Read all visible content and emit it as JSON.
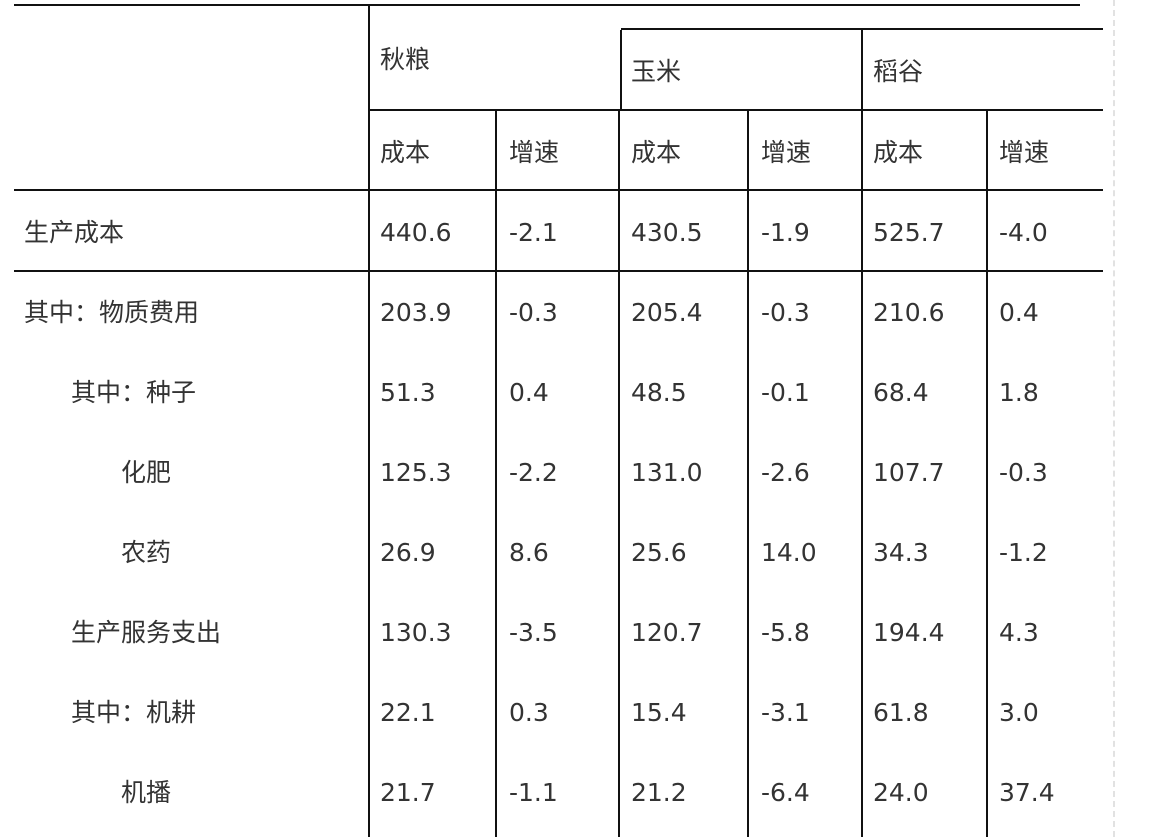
{
  "header": {
    "groups": [
      "秋粮",
      "玉米",
      "稻谷"
    ],
    "sub": [
      "成本",
      "增速",
      "成本",
      "增速",
      "成本",
      "增速"
    ]
  },
  "rows": [
    {
      "label": "生产成本",
      "indent": 0,
      "values": [
        "440.6",
        "-2.1",
        "430.5",
        "-1.9",
        "525.7",
        "-4.0"
      ]
    },
    {
      "label": "其中：物质费用",
      "indent": 0,
      "values": [
        "203.9",
        "-0.3",
        "205.4",
        "-0.3",
        "210.6",
        "0.4"
      ]
    },
    {
      "label": "其中：种子",
      "indent": 1,
      "values": [
        "51.3",
        "0.4",
        "48.5",
        "-0.1",
        "68.4",
        "1.8"
      ]
    },
    {
      "label": "化肥",
      "indent": 2,
      "values": [
        "125.3",
        "-2.2",
        "131.0",
        "-2.6",
        "107.7",
        "-0.3"
      ]
    },
    {
      "label": "农药",
      "indent": 2,
      "values": [
        "26.9",
        "8.6",
        "25.6",
        "14.0",
        "34.3",
        "-1.2"
      ]
    },
    {
      "label": "生产服务支出",
      "indent": 1,
      "values": [
        "130.3",
        "-3.5",
        "120.7",
        "-5.8",
        "194.4",
        "4.3"
      ]
    },
    {
      "label": "其中：机耕",
      "indent": 1,
      "values": [
        "22.1",
        "0.3",
        "15.4",
        "-3.1",
        "61.8",
        "3.0"
      ]
    },
    {
      "label": "机播",
      "indent": 2,
      "values": [
        "21.7",
        "-1.1",
        "21.2",
        "-6.4",
        "24.0",
        "37.4"
      ]
    }
  ]
}
